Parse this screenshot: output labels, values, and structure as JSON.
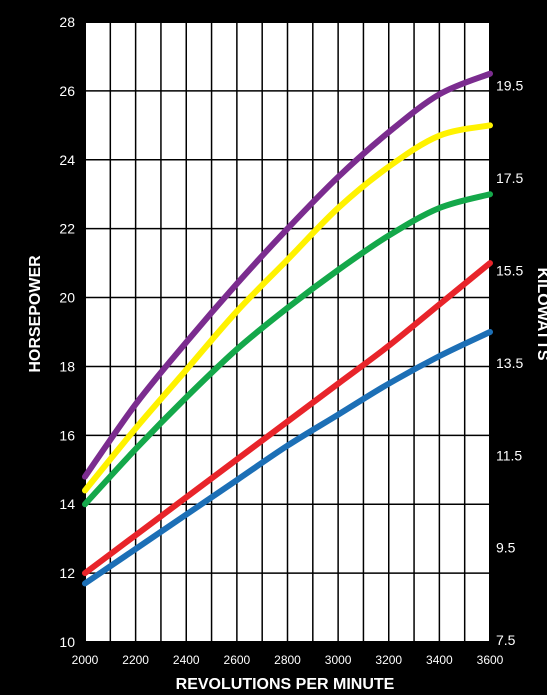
{
  "chart_data": {
    "type": "line",
    "title": "",
    "xlabel": "REVOLUTIONS PER MINUTE",
    "ylabel": "HORSEPOWER",
    "ylabel_right": "KILOWATTS",
    "xlim": [
      2000,
      3600
    ],
    "ylim": [
      10,
      28
    ],
    "x_ticks": [
      "2000",
      "2200",
      "2400",
      "2600",
      "2800",
      "3000",
      "3200",
      "3400",
      "3600"
    ],
    "y_ticks": [
      "10",
      "12",
      "14",
      "16",
      "18",
      "20",
      "22",
      "24",
      "26",
      "28"
    ],
    "y2_ticks": [
      "7.5",
      "9.5",
      "11.5",
      "13.5",
      "15.5",
      "17.5",
      "19.5"
    ],
    "grid": true,
    "background": "#ffffff",
    "series": [
      {
        "color": "#1c6fb6",
        "x": [
          2000,
          2200,
          2400,
          2600,
          2800,
          3000,
          3200,
          3400,
          3600
        ],
        "y": [
          11.7,
          12.7,
          13.7,
          14.7,
          15.7,
          16.6,
          17.5,
          18.3,
          19.0
        ]
      },
      {
        "color": "#e8242a",
        "x": [
          2000,
          2200,
          2400,
          2600,
          2800,
          3000,
          3200,
          3400,
          3600
        ],
        "y": [
          12.0,
          13.1,
          14.2,
          15.3,
          16.4,
          17.5,
          18.6,
          19.8,
          21.0
        ]
      },
      {
        "color": "#14a84a",
        "x": [
          2000,
          2200,
          2400,
          2600,
          2800,
          3000,
          3200,
          3400,
          3600
        ],
        "y": [
          14.0,
          15.6,
          17.1,
          18.5,
          19.7,
          20.8,
          21.8,
          22.6,
          23.0
        ]
      },
      {
        "color": "#fff200",
        "x": [
          2000,
          2200,
          2400,
          2600,
          2800,
          3000,
          3200,
          3400,
          3600
        ],
        "y": [
          14.4,
          16.2,
          17.9,
          19.6,
          21.1,
          22.6,
          23.8,
          24.7,
          25.0
        ]
      },
      {
        "color": "#7b2c8f",
        "x": [
          2000,
          2200,
          2400,
          2600,
          2800,
          3000,
          3200,
          3400,
          3600
        ],
        "y": [
          14.8,
          16.9,
          18.7,
          20.4,
          22.0,
          23.5,
          24.8,
          25.9,
          26.5
        ]
      }
    ]
  }
}
